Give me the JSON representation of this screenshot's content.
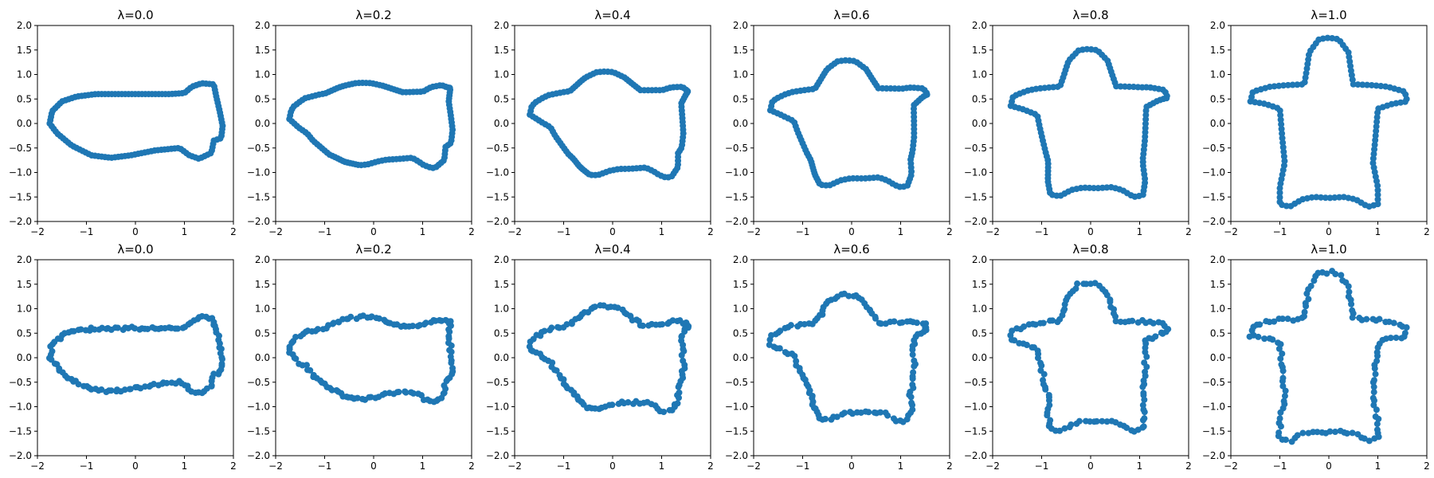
{
  "chart_data": {
    "type": "scatter",
    "rows": 2,
    "cols": 6,
    "marker_color": "#1f77b4",
    "xlim": [
      -2,
      2
    ],
    "ylim": [
      -2,
      2
    ],
    "xticks": [
      -2,
      -1,
      0,
      1,
      2
    ],
    "yticks": [
      -2.0,
      -1.5,
      -1.0,
      -0.5,
      0.0,
      0.5,
      1.0,
      1.5,
      2.0
    ],
    "xtick_labels": [
      "−2",
      "−1",
      "0",
      "1",
      "2"
    ],
    "ytick_labels": [
      "−2.0",
      "−1.5",
      "−1.0",
      "−0.5",
      "0.0",
      "0.5",
      "1.0",
      "1.5",
      "2.0"
    ],
    "panels": [
      {
        "title": "λ=0.0",
        "lambda": 0.0,
        "noise": 0.0
      },
      {
        "title": "λ=0.2",
        "lambda": 0.2,
        "noise": 0.0
      },
      {
        "title": "λ=0.4",
        "lambda": 0.4,
        "noise": 0.0
      },
      {
        "title": "λ=0.6",
        "lambda": 0.6,
        "noise": 0.0
      },
      {
        "title": "λ=0.8",
        "lambda": 0.8,
        "noise": 0.0
      },
      {
        "title": "λ=1.0",
        "lambda": 1.0,
        "noise": 0.0
      },
      {
        "title": "λ=0.0",
        "lambda": 0.0,
        "noise": 0.03
      },
      {
        "title": "λ=0.2",
        "lambda": 0.2,
        "noise": 0.03
      },
      {
        "title": "λ=0.4",
        "lambda": 0.4,
        "noise": 0.03
      },
      {
        "title": "λ=0.6",
        "lambda": 0.6,
        "noise": 0.03
      },
      {
        "title": "λ=0.8",
        "lambda": 0.8,
        "noise": 0.03
      },
      {
        "title": "λ=1.0",
        "lambda": 1.0,
        "noise": 0.03
      }
    ],
    "source_shape": {
      "name": "fish",
      "points": [
        [
          -1.75,
          0.0
        ],
        [
          -1.7,
          0.25
        ],
        [
          -1.5,
          0.45
        ],
        [
          -1.2,
          0.55
        ],
        [
          -0.8,
          0.6
        ],
        [
          -0.3,
          0.6
        ],
        [
          0.2,
          0.6
        ],
        [
          0.7,
          0.6
        ],
        [
          1.0,
          0.62
        ],
        [
          1.15,
          0.75
        ],
        [
          1.35,
          0.82
        ],
        [
          1.6,
          0.8
        ],
        [
          1.65,
          0.55
        ],
        [
          1.72,
          0.25
        ],
        [
          1.78,
          -0.05
        ],
        [
          1.75,
          -0.3
        ],
        [
          1.6,
          -0.35
        ],
        [
          1.55,
          -0.6
        ],
        [
          1.3,
          -0.72
        ],
        [
          1.1,
          -0.65
        ],
        [
          0.9,
          -0.5
        ],
        [
          0.4,
          -0.55
        ],
        [
          -0.1,
          -0.65
        ],
        [
          -0.5,
          -0.7
        ],
        [
          -0.9,
          -0.65
        ],
        [
          -1.3,
          -0.45
        ],
        [
          -1.6,
          -0.2
        ]
      ]
    },
    "target_shape": {
      "name": "star",
      "points": [
        [
          -1.6,
          0.45
        ],
        [
          -1.55,
          0.65
        ],
        [
          -1.2,
          0.75
        ],
        [
          -0.9,
          0.78
        ],
        [
          -0.5,
          0.8
        ],
        [
          -0.45,
          1.1
        ],
        [
          -0.4,
          1.45
        ],
        [
          -0.2,
          1.72
        ],
        [
          0.0,
          1.75
        ],
        [
          0.2,
          1.72
        ],
        [
          0.4,
          1.45
        ],
        [
          0.45,
          1.1
        ],
        [
          0.5,
          0.8
        ],
        [
          0.9,
          0.78
        ],
        [
          1.2,
          0.75
        ],
        [
          1.55,
          0.65
        ],
        [
          1.6,
          0.45
        ],
        [
          1.3,
          0.4
        ],
        [
          1.0,
          0.3
        ],
        [
          0.95,
          -0.3
        ],
        [
          0.9,
          -0.8
        ],
        [
          1.0,
          -1.3
        ],
        [
          1.0,
          -1.65
        ],
        [
          0.8,
          -1.7
        ],
        [
          0.55,
          -1.55
        ],
        [
          0.3,
          -1.5
        ],
        [
          0.0,
          -1.52
        ],
        [
          -0.3,
          -1.5
        ],
        [
          -0.55,
          -1.55
        ],
        [
          -0.8,
          -1.7
        ],
        [
          -1.0,
          -1.65
        ],
        [
          -1.0,
          -1.3
        ],
        [
          -0.9,
          -0.8
        ],
        [
          -0.95,
          -0.3
        ],
        [
          -1.0,
          0.3
        ],
        [
          -1.3,
          0.4
        ]
      ]
    },
    "samples_per_shape": 130
  }
}
